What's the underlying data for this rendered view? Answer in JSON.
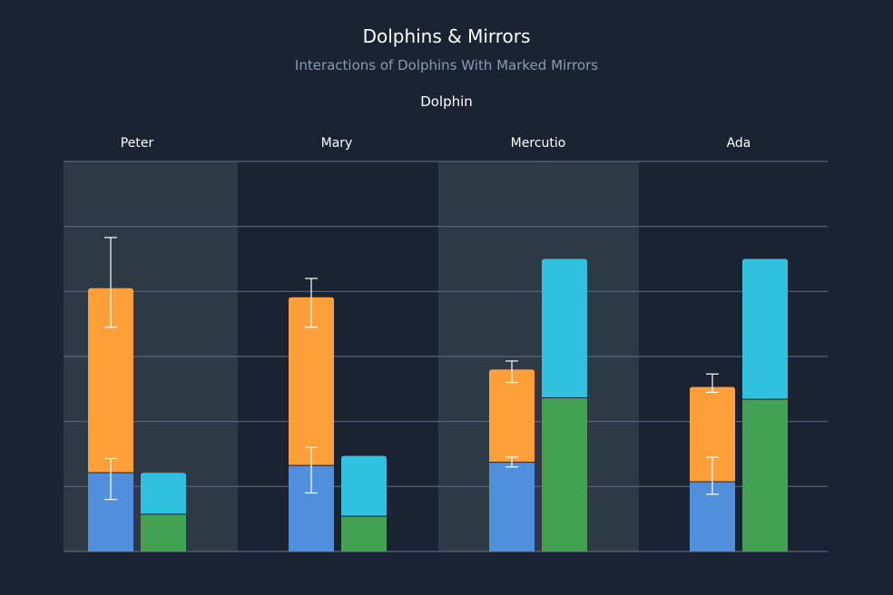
{
  "chart_data": {
    "type": "bar",
    "stacked": true,
    "grouped": true,
    "title": "Dolphins & Mirrors",
    "subtitle": "Interactions of Dolphins With Marked Mirrors",
    "grouping_label": "Dolphin",
    "categories": [
      "Peter",
      "Mary",
      "Mercutio",
      "Ada"
    ],
    "ylim": [
      0,
      6
    ],
    "y_axis_labels_visible": false,
    "grid": true,
    "alternating_column_bands": true,
    "stacks": [
      {
        "stack": 1,
        "series": [
          {
            "color": "#4f8fdc",
            "values": [
              1.22,
              1.33,
              1.38,
              1.08
            ],
            "error": [
              [
                0.8,
                1.43
              ],
              [
                0.9,
                1.6
              ],
              [
                1.3,
                1.45
              ],
              [
                0.88,
                1.45
              ]
            ]
          },
          {
            "color": "#ff9f3a",
            "values": [
              2.83,
              2.58,
              1.42,
              1.45
            ],
            "error": [
              [
                3.45,
                4.83
              ],
              [
                3.45,
                4.2
              ],
              [
                2.6,
                2.93
              ],
              [
                2.45,
                2.73
              ]
            ]
          }
        ]
      },
      {
        "stack": 2,
        "series": [
          {
            "color": "#43a153",
            "values": [
              0.58,
              0.55,
              2.37,
              2.35
            ]
          },
          {
            "color": "#30c0e0",
            "values": [
              0.63,
              0.92,
              2.13,
              2.15
            ]
          }
        ]
      }
    ],
    "colors": {
      "background": "#1a2332",
      "band": "#2e3946",
      "grid": "#5a6678",
      "error_bar": "#ffffff"
    }
  }
}
